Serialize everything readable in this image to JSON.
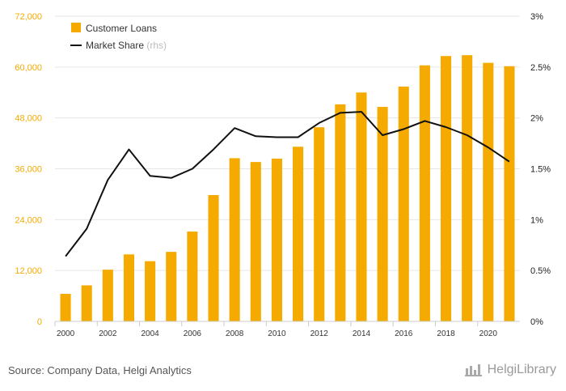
{
  "colors": {
    "bar": "#F5AA00",
    "line": "#111111",
    "axis_text_left": "#F5AA00",
    "axis_text_right": "#222222",
    "grid": "#E6E6E6",
    "rhs_note": "#BBBBBB"
  },
  "legend": {
    "bar_label": "Customer Loans",
    "line_label": "Market Share",
    "line_note": "(rhs)"
  },
  "source_text": "Source: Company Data, Helgi Analytics",
  "brand_text": "HelgiLibrary",
  "chart_data": {
    "type": "bar",
    "categories": [
      "2000",
      "2001",
      "2002",
      "2003",
      "2004",
      "2005",
      "2006",
      "2007",
      "2008",
      "2009",
      "2010",
      "2011",
      "2012",
      "2013",
      "2014",
      "2015",
      "2016",
      "2017",
      "2018",
      "2019",
      "2020",
      "2021"
    ],
    "x_tick_labels": [
      "2000",
      "2002",
      "2004",
      "2006",
      "2008",
      "2010",
      "2012",
      "2014",
      "2016",
      "2018",
      "2020"
    ],
    "series": [
      {
        "name": "Customer Loans",
        "type": "bar",
        "axis": "left",
        "values": [
          6500,
          8500,
          12200,
          15800,
          14200,
          16400,
          21200,
          29800,
          38500,
          37600,
          38400,
          41200,
          45800,
          51200,
          54000,
          50600,
          55400,
          60400,
          62600,
          62800,
          61000,
          60200
        ]
      },
      {
        "name": "Market Share",
        "type": "line",
        "axis": "right",
        "values": [
          0.64,
          0.91,
          1.39,
          1.69,
          1.43,
          1.41,
          1.5,
          1.69,
          1.9,
          1.82,
          1.81,
          1.81,
          1.95,
          2.05,
          2.06,
          1.83,
          1.89,
          1.97,
          1.91,
          1.83,
          1.71,
          1.57
        ]
      }
    ],
    "y_left": {
      "ylim": [
        0,
        72000
      ],
      "ticks": [
        0,
        12000,
        24000,
        36000,
        48000,
        60000,
        72000
      ],
      "tick_labels": [
        "0",
        "12,000",
        "24,000",
        "36,000",
        "48,000",
        "60,000",
        "72,000"
      ]
    },
    "y_right": {
      "ylim": [
        0,
        3
      ],
      "ticks": [
        0,
        0.5,
        1,
        1.5,
        2,
        2.5,
        3
      ],
      "tick_labels": [
        "0%",
        "0.5%",
        "1%",
        "1.5%",
        "2%",
        "2.5%",
        "3%"
      ]
    },
    "grid": true,
    "legend_position": "top-left"
  }
}
